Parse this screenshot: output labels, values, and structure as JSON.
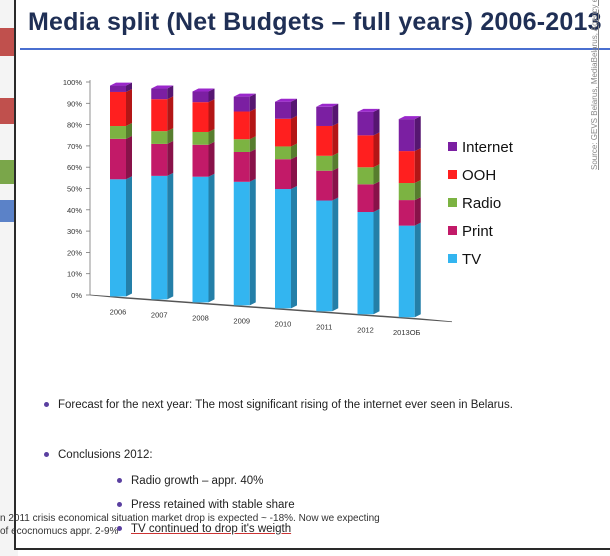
{
  "slide": {
    "title": "Media split (Net Budgets – full years) 2006-2013",
    "source": "Source: GEVS Belarus, MediaBelarus, Agency estimations",
    "bullets": {
      "forecast": "Forecast for the next year: The most significant  rising of the internet ever seen in Belarus.",
      "conclusions": "Conclusions 2012:",
      "sub": [
        "Radio growth – appr. 40%",
        "Press retained with stable share",
        "TV continued to drop it's weigth"
      ]
    },
    "footer": {
      "line1": "n 2011 crisis economical situation market drop is expected ~ -18%. Now we expecting",
      "line2": "of ecocnomucs appr. 2-9%"
    }
  },
  "chart_data": {
    "type": "bar",
    "stacked": true,
    "categories": [
      "2006",
      "2007",
      "2008",
      "2009",
      "2010",
      "2011",
      "2012",
      "2013ОБ"
    ],
    "yticks": [
      "0%",
      "10%",
      "20%",
      "30%",
      "40%",
      "50%",
      "60%",
      "70%",
      "80%",
      "90%",
      "100%"
    ],
    "ylim": [
      0,
      100
    ],
    "legend_position": "right",
    "series": [
      {
        "name": "TV",
        "color": "#33b5f0",
        "values": [
          55,
          58,
          59,
          58,
          56,
          52,
          48,
          43
        ]
      },
      {
        "name": "Print",
        "color": "#c21a68",
        "values": [
          19,
          15,
          15,
          14,
          14,
          14,
          13,
          12
        ]
      },
      {
        "name": "Radio",
        "color": "#7cb342",
        "values": [
          6,
          6,
          6,
          6,
          6,
          7,
          8,
          8
        ]
      },
      {
        "name": "OOH",
        "color": "#ff1f1f",
        "values": [
          16,
          15,
          14,
          13,
          13,
          14,
          15,
          15
        ]
      },
      {
        "name": "Internet",
        "color": "#7b1fa2",
        "values": [
          3,
          5,
          5,
          7,
          8,
          9,
          11,
          15
        ]
      }
    ],
    "legend_order": [
      "Internet",
      "OOH",
      "Radio",
      "Print",
      "TV"
    ]
  }
}
